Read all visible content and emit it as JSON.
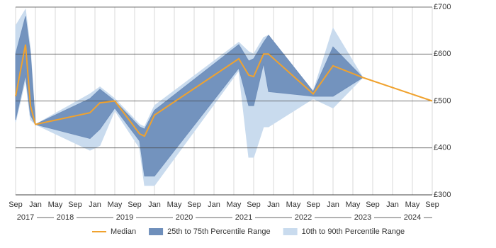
{
  "chart_data": {
    "type": "line",
    "x": [
      "2017-09",
      "2017-11",
      "2017-12",
      "2018-01",
      "2018-12",
      "2019-02",
      "2019-05",
      "2019-10",
      "2019-11",
      "2020-01",
      "2021-06",
      "2021-08",
      "2021-09",
      "2021-11",
      "2021-12",
      "2022-09",
      "2023-01",
      "2023-07",
      "2024-09"
    ],
    "series": [
      {
        "name": "Median",
        "color": "#f0a22e",
        "values": [
          510,
          620,
          490,
          450,
          475,
          496,
          500,
          430,
          425,
          470,
          590,
          555,
          552,
          600,
          600,
          515,
          575,
          550,
          500
        ]
      },
      {
        "name": "25th to 75th Percentile Range",
        "color": "#6f8fbb",
        "low": [
          460,
          555,
          470,
          450,
          420,
          440,
          485,
          415,
          340,
          340,
          570,
          490,
          490,
          580,
          520,
          510,
          510,
          550,
          null
        ],
        "high": [
          600,
          680,
          600,
          450,
          505,
          525,
          500,
          445,
          440,
          480,
          620,
          585,
          590,
          625,
          640,
          520,
          615,
          550,
          null
        ]
      },
      {
        "name": "10th to 90th Percentile Range",
        "color": "#c9dbee",
        "low": [
          455,
          545,
          460,
          450,
          395,
          405,
          480,
          400,
          320,
          320,
          565,
          380,
          380,
          445,
          445,
          505,
          485,
          550,
          null
        ],
        "high": [
          660,
          695,
          610,
          450,
          515,
          530,
          505,
          450,
          445,
          490,
          625,
          605,
          600,
          635,
          640,
          520,
          655,
          550,
          null
        ]
      }
    ],
    "xlim": [
      "2017-09",
      "2024-09"
    ],
    "xticks": [
      {
        "value": "2017-09",
        "label": "Sep"
      },
      {
        "value": "2018-01",
        "label": "Jan"
      },
      {
        "value": "2018-05",
        "label": "May"
      },
      {
        "value": "2018-09",
        "label": "Sep"
      },
      {
        "value": "2019-01",
        "label": "Jan"
      },
      {
        "value": "2019-05",
        "label": "May"
      },
      {
        "value": "2019-09",
        "label": "Sep"
      },
      {
        "value": "2020-01",
        "label": "Jan"
      },
      {
        "value": "2020-05",
        "label": "May"
      },
      {
        "value": "2020-09",
        "label": "Sep"
      },
      {
        "value": "2021-01",
        "label": "Jan"
      },
      {
        "value": "2021-05",
        "label": "May"
      },
      {
        "value": "2021-09",
        "label": "Sep"
      },
      {
        "value": "2022-01",
        "label": "Jan"
      },
      {
        "value": "2022-05",
        "label": "May"
      },
      {
        "value": "2022-09",
        "label": "Sep"
      },
      {
        "value": "2023-01",
        "label": "Jan"
      },
      {
        "value": "2023-05",
        "label": "May"
      },
      {
        "value": "2023-09",
        "label": "Sep"
      },
      {
        "value": "2024-01",
        "label": "Jan"
      },
      {
        "value": "2024-05",
        "label": "May"
      },
      {
        "value": "2024-09",
        "label": "Sep"
      }
    ],
    "years": [
      2017,
      2018,
      2019,
      2020,
      2021,
      2022,
      2023,
      2024
    ],
    "ylim": [
      300,
      700
    ],
    "yticks": [
      {
        "value": 300,
        "label": "£300"
      },
      {
        "value": 400,
        "label": "£400"
      },
      {
        "value": 500,
        "label": "£500"
      },
      {
        "value": 600,
        "label": "£600"
      },
      {
        "value": 700,
        "label": "£700"
      }
    ],
    "grid": true
  }
}
